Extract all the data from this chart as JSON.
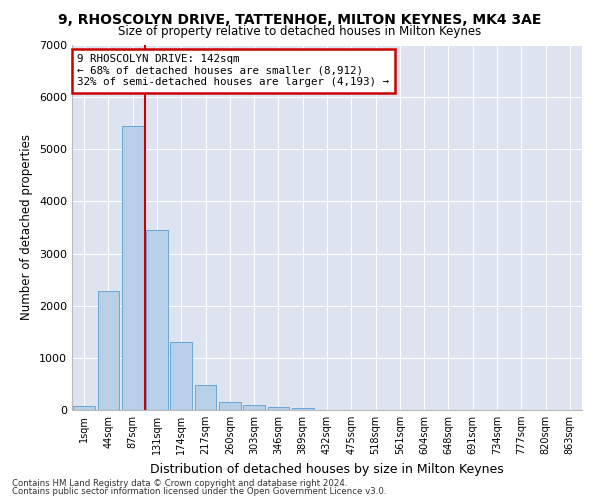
{
  "title": "9, RHOSCOLYN DRIVE, TATTENHOE, MILTON KEYNES, MK4 3AE",
  "subtitle": "Size of property relative to detached houses in Milton Keynes",
  "xlabel": "Distribution of detached houses by size in Milton Keynes",
  "ylabel": "Number of detached properties",
  "bar_color": "#b8cfe8",
  "bar_edge_color": "#5a9fd4",
  "plot_bg_color": "#dde4f0",
  "fig_bg_color": "#ffffff",
  "grid_color": "#ffffff",
  "annotation_box_edge": "#cc0000",
  "vline_color": "#cc0000",
  "categories": [
    "1sqm",
    "44sqm",
    "87sqm",
    "131sqm",
    "174sqm",
    "217sqm",
    "260sqm",
    "303sqm",
    "346sqm",
    "389sqm",
    "432sqm",
    "475sqm",
    "518sqm",
    "561sqm",
    "604sqm",
    "648sqm",
    "691sqm",
    "734sqm",
    "777sqm",
    "820sqm",
    "863sqm"
  ],
  "values": [
    80,
    2280,
    5450,
    3450,
    1310,
    470,
    160,
    90,
    60,
    30,
    5,
    0,
    0,
    0,
    0,
    0,
    0,
    0,
    0,
    0,
    0
  ],
  "ylim": [
    0,
    7000
  ],
  "yticks": [
    0,
    1000,
    2000,
    3000,
    4000,
    5000,
    6000,
    7000
  ],
  "vline_x_index": 2.5,
  "annotation_line1": "9 RHOSCOLYN DRIVE: 142sqm",
  "annotation_line2": "← 68% of detached houses are smaller (8,912)",
  "annotation_line3": "32% of semi-detached houses are larger (4,193) →",
  "footnote1": "Contains HM Land Registry data © Crown copyright and database right 2024.",
  "footnote2": "Contains public sector information licensed under the Open Government Licence v3.0."
}
